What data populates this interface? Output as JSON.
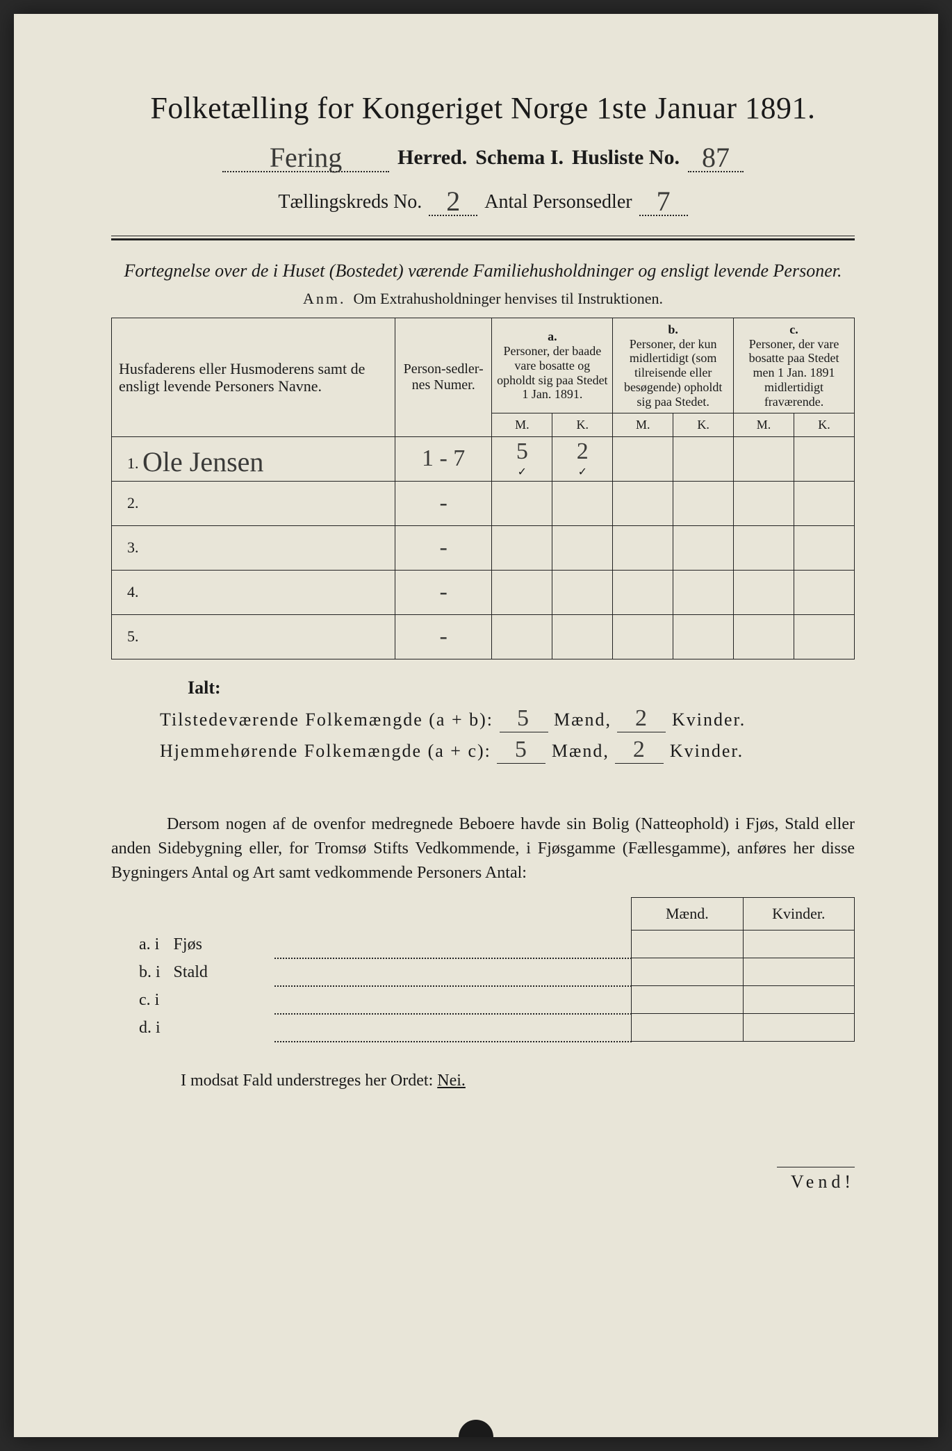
{
  "header": {
    "title": "Folketælling for Kongeriget Norge 1ste Januar 1891.",
    "herred_value": "Fering",
    "herred_label": "Herred.",
    "schema_label": "Schema I.",
    "husliste_label": "Husliste No.",
    "husliste_value": "87",
    "kreds_label": "Tællingskreds No.",
    "kreds_value": "2",
    "antal_label": "Antal Personsedler",
    "antal_value": "7"
  },
  "subtitle": "Fortegnelse over de i Huset (Bostedet) værende Familiehusholdninger og ensligt levende Personer.",
  "note_prefix": "Anm.",
  "note_text": "Om Extrahusholdninger henvises til Instruktionen.",
  "table": {
    "col_name": "Husfaderens eller Husmoderens samt de ensligt levende Personers Navne.",
    "col_num": "Person-sedler-nes Numer.",
    "col_a_top": "a.",
    "col_a": "Personer, der baade vare bosatte og opholdt sig paa Stedet 1 Jan. 1891.",
    "col_b_top": "b.",
    "col_b": "Personer, der kun midlertidigt (som tilreisende eller besøgende) opholdt sig paa Stedet.",
    "col_c_top": "c.",
    "col_c": "Personer, der vare bosatte paa Stedet men 1 Jan. 1891 midlertidigt fraværende.",
    "m": "M.",
    "k": "K.",
    "rows": [
      {
        "n": "1.",
        "name": "Ole Jensen",
        "num": "1 - 7",
        "am": "5",
        "ak": "2",
        "bm": "",
        "bk": "",
        "cm": "",
        "ck": ""
      },
      {
        "n": "2.",
        "name": "",
        "num": "-",
        "am": "",
        "ak": "",
        "bm": "",
        "bk": "",
        "cm": "",
        "ck": ""
      },
      {
        "n": "3.",
        "name": "",
        "num": "-",
        "am": "",
        "ak": "",
        "bm": "",
        "bk": "",
        "cm": "",
        "ck": ""
      },
      {
        "n": "4.",
        "name": "",
        "num": "-",
        "am": "",
        "ak": "",
        "bm": "",
        "bk": "",
        "cm": "",
        "ck": ""
      },
      {
        "n": "5.",
        "name": "",
        "num": "-",
        "am": "",
        "ak": "",
        "bm": "",
        "bk": "",
        "cm": "",
        "ck": ""
      }
    ],
    "checkmark": "✓"
  },
  "totals": {
    "ialt": "Ialt:",
    "line1_label": "Tilstedeværende Folkemængde (a + b):",
    "line2_label": "Hjemmehørende Folkemængde (a + c):",
    "maend": "Mænd,",
    "kvinder": "Kvinder.",
    "l1_m": "5",
    "l1_k": "2",
    "l2_m": "5",
    "l2_k": "2"
  },
  "para": "Dersom nogen af de ovenfor medregnede Beboere havde sin Bolig (Natteophold) i Fjøs, Stald eller anden Sidebygning eller, for Tromsø Stifts Vedkommende, i Fjøsgamme (Fællesgamme), anføres her disse Bygningers Antal og Art samt vedkommende Personers Antal:",
  "lower": {
    "maend": "Mænd.",
    "kvinder": "Kvinder.",
    "rows": [
      {
        "l": "a.  i",
        "t": "Fjøs"
      },
      {
        "l": "b.  i",
        "t": "Stald"
      },
      {
        "l": "c.  i",
        "t": ""
      },
      {
        "l": "d.  i",
        "t": ""
      }
    ]
  },
  "nei_line": "I modsat Fald understreges her Ordet:",
  "nei": "Nei.",
  "vend": "Vend!"
}
